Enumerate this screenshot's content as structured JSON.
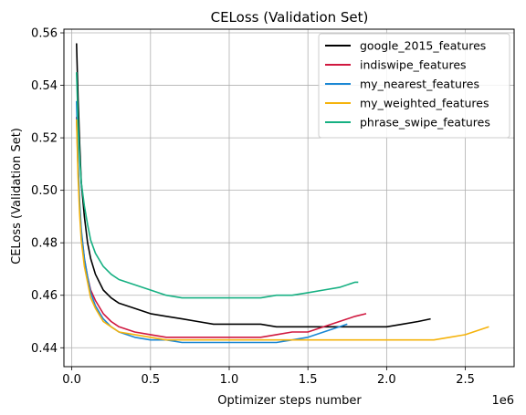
{
  "chart_data": {
    "type": "line",
    "title": "CELoss (Validation Set)",
    "xlabel": "Optimizer steps number",
    "ylabel": "CELoss (Validation Set)",
    "x_offset_label": "1e6",
    "x_scale": 1000000,
    "xlim": [
      -0.05,
      2.81
    ],
    "ylim": [
      0.4328,
      0.5614
    ],
    "x_ticks": [
      0.0,
      0.5,
      1.0,
      1.5,
      2.0,
      2.5
    ],
    "x_tick_labels": [
      "0.0",
      "0.5",
      "1.0",
      "1.5",
      "2.0",
      "2.5"
    ],
    "y_ticks": [
      0.44,
      0.46,
      0.48,
      0.5,
      0.52,
      0.54,
      0.56
    ],
    "y_tick_labels": [
      "0.44",
      "0.46",
      "0.48",
      "0.50",
      "0.52",
      "0.54",
      "0.56"
    ],
    "grid": true,
    "legend_position": "upper right",
    "series": [
      {
        "name": "google_2015_features",
        "color": "#000000",
        "x": [
          0.03,
          0.04,
          0.05,
          0.06,
          0.08,
          0.1,
          0.12,
          0.15,
          0.2,
          0.25,
          0.3,
          0.4,
          0.5,
          0.6,
          0.7,
          0.8,
          0.9,
          1.0,
          1.1,
          1.2,
          1.3,
          1.4,
          1.5,
          1.6,
          1.7,
          1.8,
          1.9,
          2.0,
          2.1,
          2.2,
          2.28
        ],
        "y": [
          0.556,
          0.535,
          0.518,
          0.503,
          0.49,
          0.48,
          0.474,
          0.468,
          0.462,
          0.459,
          0.457,
          0.455,
          0.453,
          0.452,
          0.451,
          0.45,
          0.449,
          0.449,
          0.449,
          0.449,
          0.448,
          0.448,
          0.448,
          0.448,
          0.448,
          0.448,
          0.448,
          0.448,
          0.449,
          0.45,
          0.451
        ]
      },
      {
        "name": "indiswipe_features",
        "color": "#d0183f",
        "x": [
          0.03,
          0.04,
          0.05,
          0.06,
          0.08,
          0.1,
          0.12,
          0.15,
          0.2,
          0.25,
          0.3,
          0.4,
          0.5,
          0.6,
          0.7,
          0.8,
          0.9,
          1.0,
          1.1,
          1.2,
          1.3,
          1.4,
          1.5,
          1.6,
          1.7,
          1.8,
          1.87
        ],
        "y": [
          0.528,
          0.508,
          0.494,
          0.484,
          0.474,
          0.467,
          0.462,
          0.458,
          0.453,
          0.45,
          0.448,
          0.446,
          0.445,
          0.444,
          0.444,
          0.444,
          0.444,
          0.444,
          0.444,
          0.444,
          0.445,
          0.446,
          0.446,
          0.448,
          0.45,
          0.452,
          0.453
        ]
      },
      {
        "name": "my_nearest_features",
        "color": "#1a87d4",
        "x": [
          0.03,
          0.04,
          0.05,
          0.06,
          0.08,
          0.1,
          0.12,
          0.15,
          0.2,
          0.25,
          0.3,
          0.4,
          0.5,
          0.6,
          0.7,
          0.8,
          0.9,
          1.0,
          1.1,
          1.2,
          1.3,
          1.4,
          1.5,
          1.6,
          1.7,
          1.75
        ],
        "y": [
          0.534,
          0.512,
          0.496,
          0.485,
          0.474,
          0.467,
          0.461,
          0.456,
          0.451,
          0.448,
          0.446,
          0.444,
          0.443,
          0.443,
          0.442,
          0.442,
          0.442,
          0.442,
          0.442,
          0.442,
          0.442,
          0.443,
          0.444,
          0.446,
          0.448,
          0.449
        ]
      },
      {
        "name": "my_weighted_features",
        "color": "#f5b30c",
        "x": [
          0.03,
          0.04,
          0.05,
          0.06,
          0.08,
          0.1,
          0.12,
          0.15,
          0.2,
          0.25,
          0.3,
          0.4,
          0.5,
          0.6,
          0.7,
          0.8,
          0.9,
          1.0,
          1.1,
          1.2,
          1.3,
          1.4,
          1.5,
          1.6,
          1.7,
          1.8,
          1.9,
          2.0,
          2.1,
          2.2,
          2.3,
          2.4,
          2.5,
          2.6,
          2.65
        ],
        "y": [
          0.527,
          0.505,
          0.491,
          0.481,
          0.471,
          0.465,
          0.459,
          0.455,
          0.45,
          0.448,
          0.446,
          0.445,
          0.444,
          0.443,
          0.443,
          0.443,
          0.443,
          0.443,
          0.443,
          0.443,
          0.443,
          0.443,
          0.443,
          0.443,
          0.443,
          0.443,
          0.443,
          0.443,
          0.443,
          0.443,
          0.443,
          0.444,
          0.445,
          0.447,
          0.448
        ]
      },
      {
        "name": "phrase_swipe_features",
        "color": "#16b082",
        "x": [
          0.03,
          0.04,
          0.05,
          0.06,
          0.08,
          0.1,
          0.12,
          0.15,
          0.2,
          0.25,
          0.3,
          0.4,
          0.5,
          0.6,
          0.7,
          0.8,
          0.9,
          1.0,
          1.1,
          1.2,
          1.3,
          1.4,
          1.5,
          1.6,
          1.7,
          1.8,
          1.82
        ],
        "y": [
          0.545,
          0.526,
          0.513,
          0.503,
          0.494,
          0.487,
          0.481,
          0.476,
          0.471,
          0.468,
          0.466,
          0.464,
          0.462,
          0.46,
          0.459,
          0.459,
          0.459,
          0.459,
          0.459,
          0.459,
          0.46,
          0.46,
          0.461,
          0.462,
          0.463,
          0.465,
          0.465
        ]
      }
    ]
  }
}
